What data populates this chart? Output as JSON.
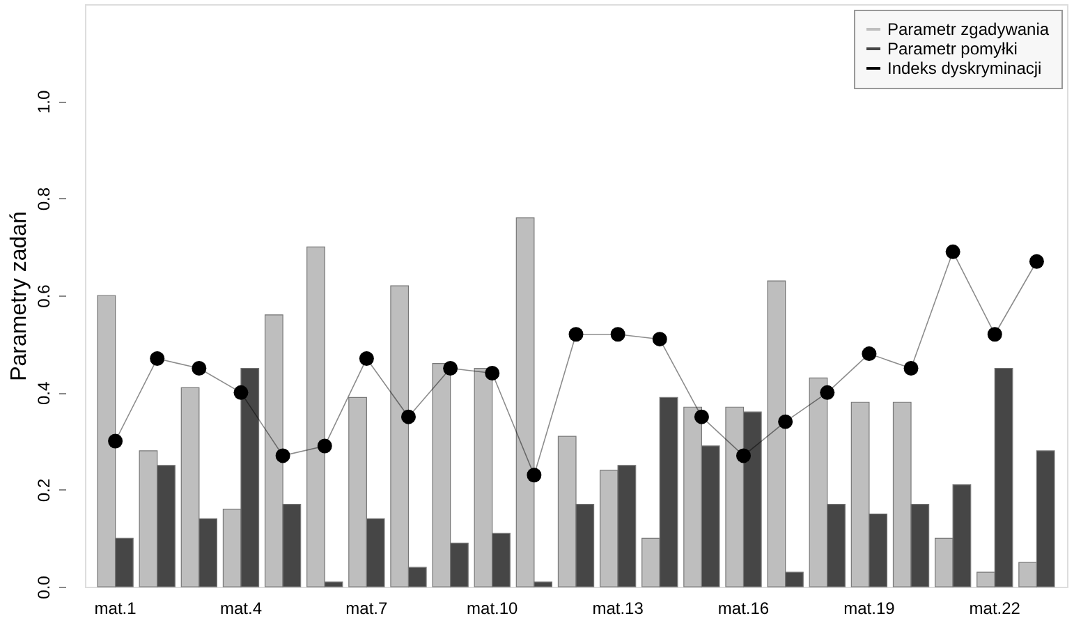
{
  "chart_data": {
    "type": "bar",
    "ylabel": "Parametry zadań",
    "categories": [
      "mat.1",
      null,
      null,
      "mat.4",
      null,
      null,
      "mat.7",
      null,
      null,
      "mat.10",
      null,
      null,
      "mat.13",
      null,
      null,
      "mat.16",
      null,
      null,
      "mat.19",
      null,
      null,
      "mat.22",
      null
    ],
    "series": [
      {
        "name": "Parametr zgadywania",
        "color": "#bebebe",
        "values": [
          0.6,
          0.28,
          0.41,
          0.16,
          0.56,
          0.7,
          0.39,
          0.62,
          0.46,
          0.45,
          0.76,
          0.31,
          0.24,
          0.1,
          0.37,
          0.37,
          0.63,
          0.43,
          0.38,
          0.38,
          0.1,
          0.03,
          0.05
        ]
      },
      {
        "name": "Parametr pomyłki",
        "color": "#464646",
        "values": [
          0.1,
          0.25,
          0.14,
          0.45,
          0.17,
          0.01,
          0.14,
          0.04,
          0.09,
          0.11,
          0.01,
          0.17,
          0.25,
          0.39,
          0.29,
          0.36,
          0.03,
          0.17,
          0.15,
          0.17,
          0.21,
          0.45,
          0.28
        ]
      },
      {
        "name": "Indeks dyskryminacji",
        "type": "line",
        "marker": "circle",
        "color": "#000000",
        "values": [
          0.3,
          0.47,
          0.45,
          0.4,
          0.27,
          0.29,
          0.47,
          0.35,
          0.45,
          0.44,
          0.23,
          0.52,
          0.52,
          0.51,
          0.35,
          0.27,
          0.34,
          0.4,
          0.48,
          0.45,
          0.69,
          0.52,
          0.67
        ]
      }
    ],
    "ylim": [
      0,
      1.2
    ],
    "yticks": [
      {
        "value": 0,
        "label": "0.0"
      },
      {
        "value": 0.2,
        "label": "0.2"
      },
      {
        "value": 0.4,
        "label": "0.4"
      },
      {
        "value": 0.6,
        "label": "0.6"
      },
      {
        "value": 0.8,
        "label": "0.8"
      },
      {
        "value": 1,
        "label": "1.0"
      }
    ],
    "legend": "top right",
    "grid": false
  }
}
